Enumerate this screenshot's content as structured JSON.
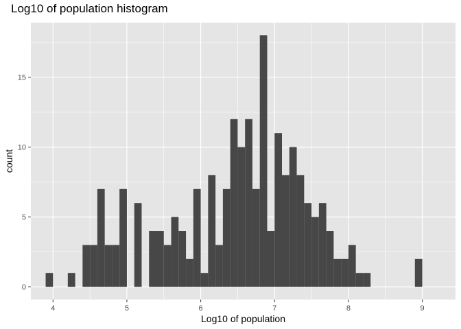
{
  "chart_data": {
    "type": "histogram",
    "title": "Log10 of population histogram",
    "xlabel": "Log10 of population",
    "ylabel": "count",
    "xlim": [
      3.7,
      9.45
    ],
    "ylim": [
      -0.9,
      18.9
    ],
    "bin_width": 0.1,
    "x_ticks": [
      4,
      5,
      6,
      7,
      8,
      9
    ],
    "y_ticks": [
      0,
      5,
      10,
      15
    ],
    "x_tick_labels": [
      "4",
      "5",
      "6",
      "7",
      "8",
      "9"
    ],
    "y_tick_labels": [
      "0",
      "5",
      "10",
      "15"
    ],
    "bins": [
      {
        "x": 3.9,
        "count": 1
      },
      {
        "x": 4.2,
        "count": 1
      },
      {
        "x": 4.4,
        "count": 3
      },
      {
        "x": 4.5,
        "count": 3
      },
      {
        "x": 4.6,
        "count": 7
      },
      {
        "x": 4.7,
        "count": 3
      },
      {
        "x": 4.8,
        "count": 3
      },
      {
        "x": 4.9,
        "count": 7
      },
      {
        "x": 5.1,
        "count": 6
      },
      {
        "x": 5.3,
        "count": 4
      },
      {
        "x": 5.4,
        "count": 4
      },
      {
        "x": 5.5,
        "count": 3
      },
      {
        "x": 5.6,
        "count": 5
      },
      {
        "x": 5.7,
        "count": 4
      },
      {
        "x": 5.8,
        "count": 2
      },
      {
        "x": 5.9,
        "count": 7
      },
      {
        "x": 6.0,
        "count": 1
      },
      {
        "x": 6.1,
        "count": 8
      },
      {
        "x": 6.2,
        "count": 3
      },
      {
        "x": 6.3,
        "count": 7
      },
      {
        "x": 6.4,
        "count": 12
      },
      {
        "x": 6.5,
        "count": 10
      },
      {
        "x": 6.6,
        "count": 12
      },
      {
        "x": 6.7,
        "count": 7
      },
      {
        "x": 6.8,
        "count": 18
      },
      {
        "x": 6.9,
        "count": 4
      },
      {
        "x": 7.0,
        "count": 11
      },
      {
        "x": 7.1,
        "count": 8
      },
      {
        "x": 7.2,
        "count": 10
      },
      {
        "x": 7.3,
        "count": 8
      },
      {
        "x": 7.4,
        "count": 6
      },
      {
        "x": 7.5,
        "count": 5
      },
      {
        "x": 7.6,
        "count": 6
      },
      {
        "x": 7.7,
        "count": 4
      },
      {
        "x": 7.8,
        "count": 2
      },
      {
        "x": 7.9,
        "count": 2
      },
      {
        "x": 8.0,
        "count": 3
      },
      {
        "x": 8.1,
        "count": 1
      },
      {
        "x": 8.2,
        "count": 1
      },
      {
        "x": 8.9,
        "count": 2
      }
    ],
    "grid": true,
    "colors": {
      "panel_background": "#e5e5e5",
      "grid_major": "#ffffff",
      "bar_fill": "#474747",
      "tick_text": "#4d4d4d",
      "tick_mark": "#333333"
    }
  }
}
